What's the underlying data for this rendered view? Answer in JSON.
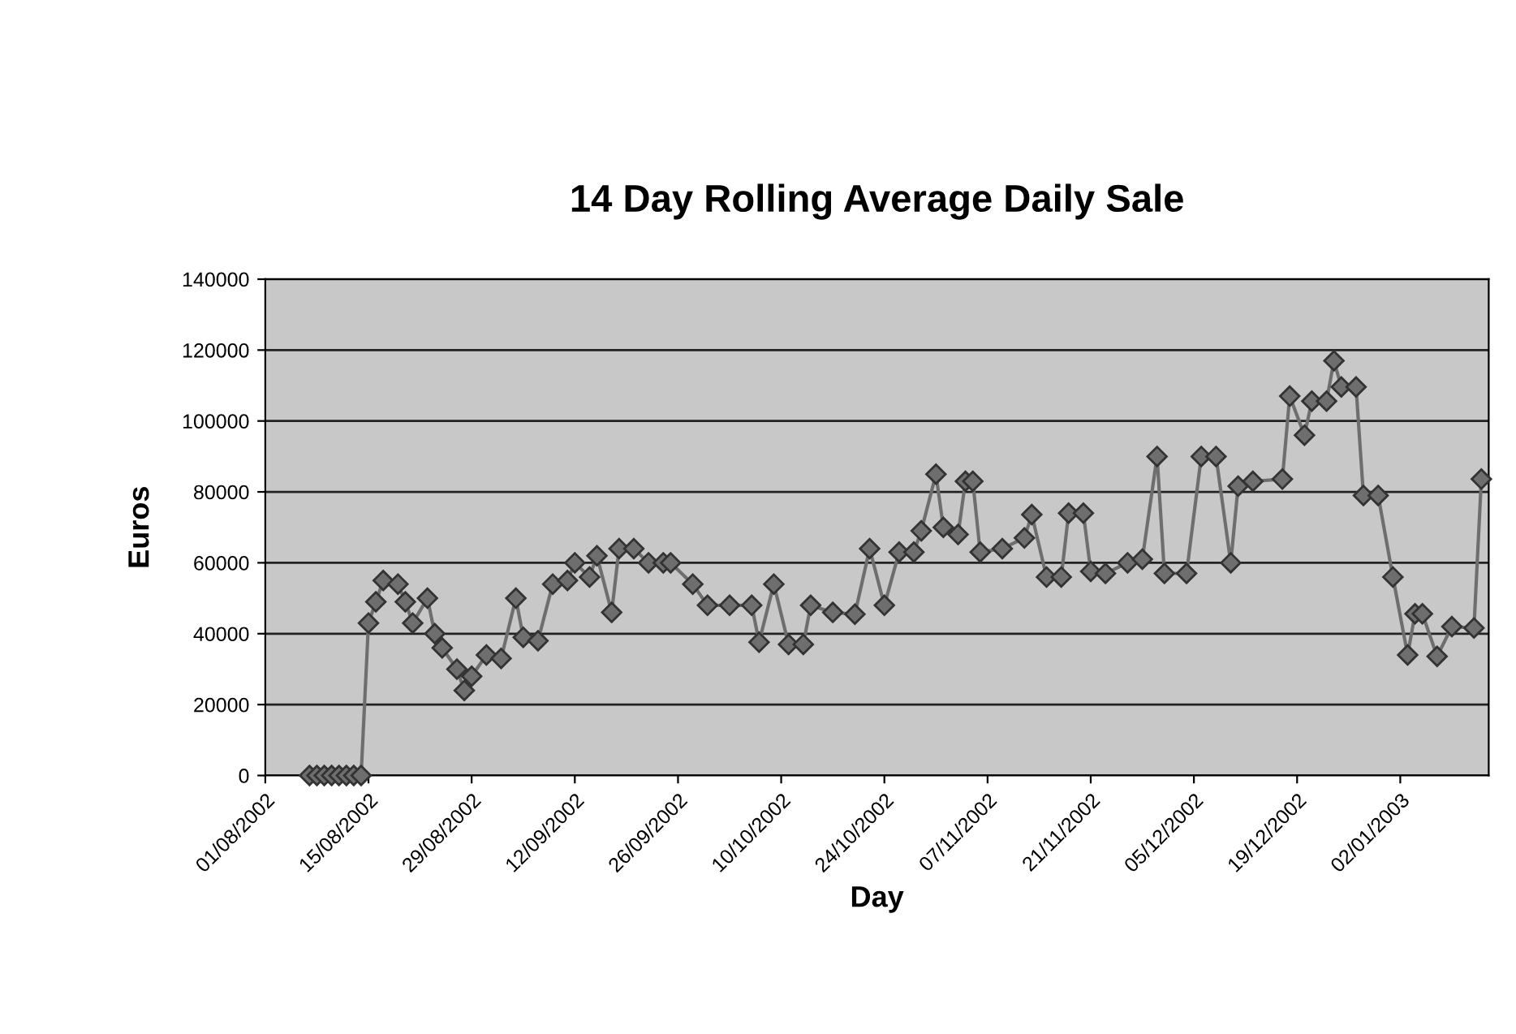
{
  "chart_data": {
    "type": "line",
    "title": "14 Day Rolling Average Daily Sale",
    "xlabel": "Day",
    "ylabel": "Euros",
    "x": [
      "2002-08-07",
      "2002-08-08",
      "2002-08-09",
      "2002-08-10",
      "2002-08-11",
      "2002-08-12",
      "2002-08-13",
      "2002-08-14",
      "2002-08-15",
      "2002-08-16",
      "2002-08-17",
      "2002-08-19",
      "2002-08-20",
      "2002-08-21",
      "2002-08-23",
      "2002-08-24",
      "2002-08-25",
      "2002-08-27",
      "2002-08-28",
      "2002-08-29",
      "2002-08-31",
      "2002-09-02",
      "2002-09-04",
      "2002-09-05",
      "2002-09-07",
      "2002-09-09",
      "2002-09-11",
      "2002-09-12",
      "2002-09-14",
      "2002-09-15",
      "2002-09-17",
      "2002-09-18",
      "2002-09-20",
      "2002-09-22",
      "2002-09-24",
      "2002-09-25",
      "2002-09-28",
      "2002-09-30",
      "2002-10-03",
      "2002-10-06",
      "2002-10-07",
      "2002-10-09",
      "2002-10-11",
      "2002-10-13",
      "2002-10-14",
      "2002-10-17",
      "2002-10-20",
      "2002-10-22",
      "2002-10-24",
      "2002-10-26",
      "2002-10-28",
      "2002-10-29",
      "2002-10-31",
      "2002-11-01",
      "2002-11-03",
      "2002-11-04",
      "2002-11-05",
      "2002-11-06",
      "2002-11-09",
      "2002-11-12",
      "2002-11-13",
      "2002-11-15",
      "2002-11-17",
      "2002-11-18",
      "2002-11-20",
      "2002-11-21",
      "2002-11-23",
      "2002-11-26",
      "2002-11-28",
      "2002-11-30",
      "2002-12-01",
      "2002-12-04",
      "2002-12-06",
      "2002-12-08",
      "2002-12-10",
      "2002-12-11",
      "2002-12-13",
      "2002-12-17",
      "2002-12-18",
      "2002-12-20",
      "2002-12-21",
      "2002-12-23",
      "2002-12-24",
      "2002-12-25",
      "2002-12-27",
      "2002-12-28",
      "2002-12-30",
      "2003-01-01",
      "2003-01-03",
      "2003-01-04",
      "2003-01-05",
      "2003-01-07",
      "2003-01-09",
      "2003-01-12",
      "2003-01-13"
    ],
    "series": [
      {
        "color": "#6e6e6e",
        "values": [
          0,
          0,
          0,
          0,
          0,
          0,
          0,
          0,
          43000,
          49000,
          55000,
          54000,
          49000,
          43000,
          50000,
          40000,
          36000,
          30000,
          24000,
          28000,
          34000,
          33000,
          50000,
          39000,
          38000,
          54000,
          55000,
          60000,
          56000,
          62000,
          46000,
          64000,
          64000,
          60000,
          60000,
          60000,
          54000,
          48000,
          48000,
          48000,
          37600,
          54000,
          37000,
          37000,
          48000,
          46000,
          45500,
          64000,
          48000,
          63000,
          63000,
          69000,
          85000,
          70000,
          68000,
          83000,
          83000,
          63000,
          64000,
          67000,
          73600,
          56000,
          56000,
          74000,
          74000,
          57600,
          57000,
          60000,
          61000,
          90000,
          57000,
          57000,
          90000,
          90000,
          60000,
          81600,
          83000,
          83600,
          107000,
          96000,
          105600,
          105600,
          117000,
          109600,
          109600,
          79000,
          79000,
          56000,
          34000,
          45600,
          45600,
          33600,
          42000,
          41600,
          83600
        ]
      }
    ],
    "marker": "diamond",
    "line_style": "solid",
    "grid": "y",
    "legend": false,
    "xlim": [
      "2002-08-01",
      "2003-01-14"
    ],
    "ylim": [
      0,
      140000
    ],
    "yticks": [
      0,
      20000,
      40000,
      60000,
      80000,
      100000,
      120000,
      140000
    ],
    "xticks": [
      {
        "value": "2002-08-01",
        "label": "01/08/2002"
      },
      {
        "value": "2002-08-15",
        "label": "15/08/2002"
      },
      {
        "value": "2002-08-29",
        "label": "29/08/2002"
      },
      {
        "value": "2002-09-12",
        "label": "12/09/2002"
      },
      {
        "value": "2002-09-26",
        "label": "26/09/2002"
      },
      {
        "value": "2002-10-10",
        "label": "10/10/2002"
      },
      {
        "value": "2002-10-24",
        "label": "24/10/2002"
      },
      {
        "value": "2002-11-07",
        "label": "07/11/2002"
      },
      {
        "value": "2002-11-21",
        "label": "21/11/2002"
      },
      {
        "value": "2002-12-05",
        "label": "05/12/2002"
      },
      {
        "value": "2002-12-19",
        "label": "19/12/2002"
      },
      {
        "value": "2003-01-02",
        "label": "02/01/2003"
      }
    ]
  }
}
